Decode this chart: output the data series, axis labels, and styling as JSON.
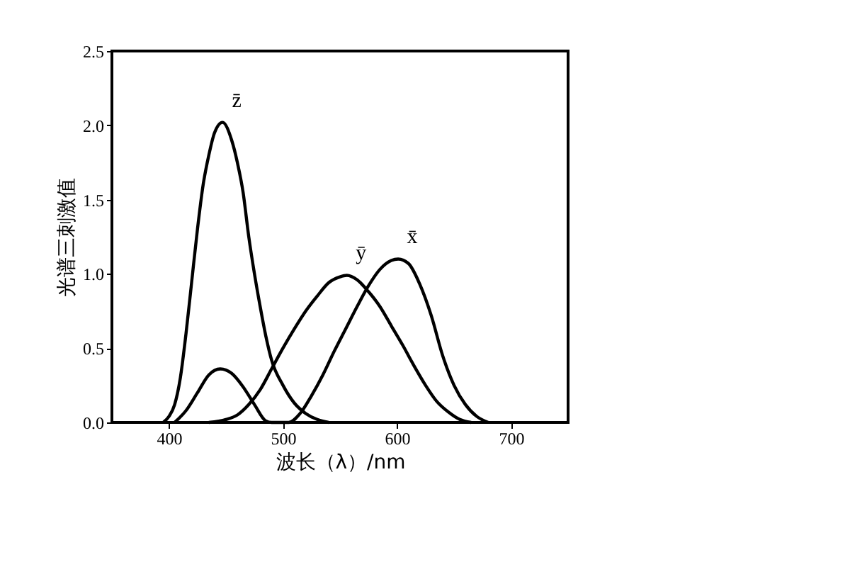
{
  "chart_data": {
    "type": "line",
    "xlabel": "波长（λ）/nm",
    "ylabel": "光谱三刺激值",
    "xlim": [
      350,
      750
    ],
    "xticks": [
      400,
      500,
      600,
      700
    ],
    "ylim": [
      0,
      2.5
    ],
    "yticks": [
      {
        "value": 0,
        "label": "0.0"
      },
      {
        "value": 0.5,
        "label": "0.5"
      },
      {
        "value": 1,
        "label": "1.0"
      },
      {
        "value": 1.5,
        "label": "1.5"
      },
      {
        "value": 2,
        "label": "2.0"
      },
      {
        "value": 2.5,
        "label": "2.5"
      }
    ],
    "grid": false,
    "marker": "none",
    "line_style": "solid",
    "series": [
      {
        "name": "z̄",
        "color": "#000000",
        "x": [
          395,
          400,
          405,
          410,
          415,
          420,
          425,
          430,
          435,
          440,
          447,
          455,
          460,
          465,
          470,
          475,
          480,
          485,
          490,
          500,
          510,
          520,
          530,
          540
        ],
        "values": [
          0,
          0.04,
          0.12,
          0.3,
          0.6,
          0.95,
          1.3,
          1.6,
          1.8,
          1.95,
          2.02,
          1.9,
          1.75,
          1.55,
          1.25,
          1.0,
          0.78,
          0.58,
          0.42,
          0.25,
          0.13,
          0.06,
          0.02,
          0
        ]
      },
      {
        "name": "ȳ",
        "color": "#000000",
        "x": [
          435,
          450,
          460,
          470,
          480,
          490,
          500,
          510,
          520,
          530,
          540,
          550,
          556,
          565,
          575,
          585,
          595,
          605,
          615,
          625,
          635,
          645,
          655,
          665
        ],
        "values": [
          0,
          0.02,
          0.05,
          0.12,
          0.22,
          0.36,
          0.5,
          0.63,
          0.75,
          0.85,
          0.94,
          0.98,
          0.99,
          0.96,
          0.88,
          0.78,
          0.65,
          0.52,
          0.38,
          0.25,
          0.14,
          0.07,
          0.02,
          0
        ]
      },
      {
        "name": "x̄",
        "color": "#000000",
        "x": [
          405,
          415,
          425,
          435,
          445,
          455,
          465,
          475,
          485,
          490,
          505,
          515,
          525,
          535,
          545,
          555,
          565,
          575,
          585,
          595,
          601,
          610,
          620,
          630,
          640,
          650,
          660,
          670,
          680
        ],
        "values": [
          0,
          0.08,
          0.2,
          0.32,
          0.36,
          0.33,
          0.24,
          0.12,
          0.01,
          0,
          0,
          0.06,
          0.18,
          0.32,
          0.48,
          0.63,
          0.78,
          0.92,
          1.03,
          1.09,
          1.1,
          1.07,
          0.93,
          0.72,
          0.45,
          0.25,
          0.12,
          0.04,
          0
        ]
      }
    ]
  }
}
